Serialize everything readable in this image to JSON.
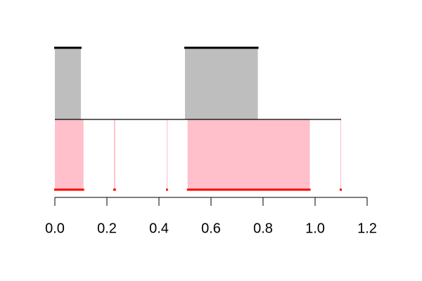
{
  "chart_data": {
    "type": "interval",
    "xlim": [
      0,
      1.2
    ],
    "xticks": [
      {
        "value": 0,
        "label": "0.0"
      },
      {
        "value": 0.2,
        "label": "0.2"
      },
      {
        "value": 0.4,
        "label": "0.4"
      },
      {
        "value": 0.6,
        "label": "0.6"
      },
      {
        "value": 0.8,
        "label": "0.8"
      },
      {
        "value": 1,
        "label": "1.0"
      },
      {
        "value": 1.2,
        "label": "1.2"
      }
    ],
    "series": [
      {
        "color": "#bebebe",
        "edge_color": "#000000",
        "side": "above",
        "values": [
          [
            0,
            0.1
          ],
          [
            0.5,
            0.78
          ]
        ]
      },
      {
        "color": "#ffc0cb",
        "edge_color": "#ff0000",
        "side": "below",
        "values": [
          [
            0,
            0.11
          ],
          [
            0.227,
            0.232
          ],
          [
            0.43,
            0.432
          ],
          [
            0.51,
            0.98
          ],
          [
            1.097,
            1.1
          ]
        ]
      }
    ]
  }
}
